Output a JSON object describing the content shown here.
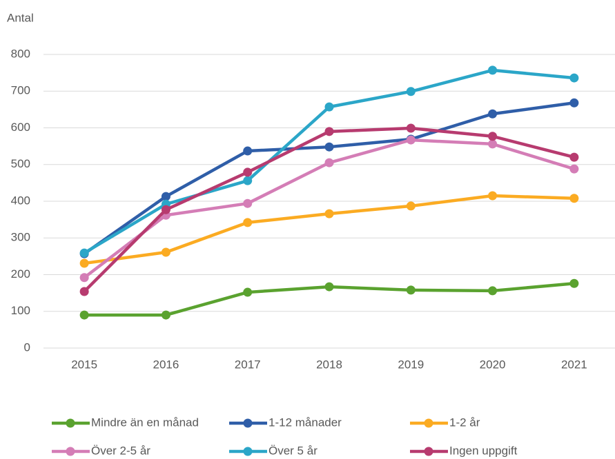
{
  "chart_data": {
    "type": "line",
    "ylabel": "Antal",
    "categories": [
      "2015",
      "2016",
      "2017",
      "2018",
      "2019",
      "2020",
      "2021"
    ],
    "series": [
      {
        "name": "Mindre än en månad",
        "color": "#5aa22f",
        "values": [
          90,
          90,
          152,
          167,
          158,
          156,
          176
        ]
      },
      {
        "name": "1-12 månader",
        "color": "#2f5ea8",
        "values": [
          257,
          413,
          537,
          548,
          569,
          638,
          668
        ]
      },
      {
        "name": "1-2 år",
        "color": "#fbab22",
        "values": [
          231,
          261,
          342,
          366,
          387,
          415,
          408
        ]
      },
      {
        "name": "Över 2-5 år",
        "color": "#d47db6",
        "values": [
          192,
          362,
          394,
          505,
          567,
          556,
          488
        ]
      },
      {
        "name": "Över 5 år",
        "color": "#2ba6c8",
        "values": [
          259,
          392,
          456,
          657,
          699,
          757,
          736
        ]
      },
      {
        "name": "Ingen uppgift",
        "color": "#b73b6f",
        "values": [
          154,
          377,
          479,
          590,
          599,
          577,
          520
        ]
      }
    ],
    "ylim": [
      0,
      800
    ],
    "yticks": [
      0,
      100,
      200,
      300,
      400,
      500,
      600,
      700,
      800
    ],
    "grid": true
  }
}
